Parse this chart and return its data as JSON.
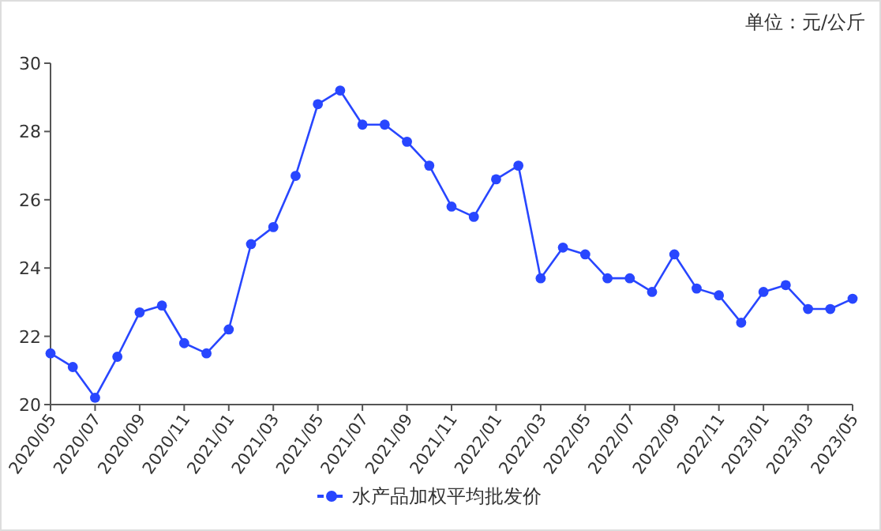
{
  "chart_data": {
    "type": "line",
    "annotations": [
      "单位：元/公斤"
    ],
    "categories": [
      "2020/05",
      null,
      "2020/07",
      null,
      "2020/09",
      null,
      "2020/11",
      null,
      "2021/01",
      null,
      "2021/03",
      null,
      "2021/05",
      null,
      "2021/07",
      null,
      "2021/09",
      null,
      "2021/11",
      null,
      "2022/01",
      null,
      "2022/03",
      null,
      "2022/05",
      null,
      "2022/07",
      null,
      "2022/09",
      null,
      "2022/11",
      null,
      "2023/01",
      null,
      "2023/03",
      null,
      "2023/05"
    ],
    "series": [
      {
        "name": "水产品加权平均批发价",
        "color": "#2846ff",
        "values": [
          21.5,
          21.1,
          20.2,
          21.4,
          22.7,
          22.9,
          21.8,
          21.5,
          22.2,
          24.7,
          25.2,
          26.7,
          28.8,
          29.2,
          28.2,
          28.2,
          27.7,
          27.0,
          25.8,
          25.5,
          26.6,
          27.0,
          23.7,
          24.6,
          24.4,
          23.7,
          23.7,
          23.3,
          24.4,
          23.4,
          23.2,
          22.4,
          23.3,
          23.5,
          22.8,
          22.8,
          23.1
        ]
      }
    ],
    "ylim": [
      20,
      30
    ],
    "yticks": [
      20,
      22,
      24,
      26,
      28,
      30
    ],
    "grid": false,
    "legend": "bottom",
    "marker": "circle",
    "line_style": "solid"
  }
}
